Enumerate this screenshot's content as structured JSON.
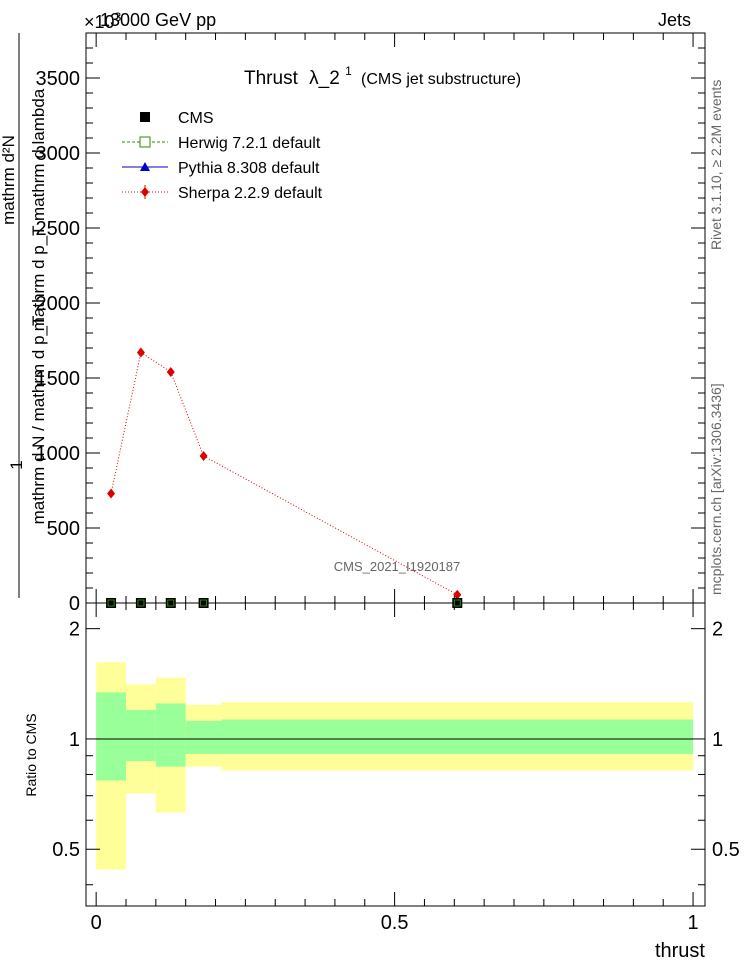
{
  "header": {
    "left": "13000 GeV pp",
    "right": "Jets",
    "exponent_label": "×10",
    "exponent_power": "3"
  },
  "side_text": {
    "rivet": "Rivet 3.1.10, ≥ 2.2M events",
    "mcplots": "mcplots.cern.ch [arXiv:1306.3436]"
  },
  "main_title": {
    "prefix": "Thrust",
    "lambda": "λ_2",
    "superscript": "1",
    "suffix": "(CMS jet substructure)"
  },
  "analysis_id": "CMS_2021_I1920187",
  "y_title": {
    "numerator": "mathrm d²N",
    "numerator_2": "mathrm d p_T mathrm d lambda",
    "denominator": "mathrm d N / mathrm d p_T",
    "one": "1"
  },
  "ratio_ylabel": "Ratio to CMS",
  "xlabel": "thrust",
  "legend": [
    {
      "name": "CMS",
      "color": "#000000",
      "marker": "square-filled",
      "line": "none"
    },
    {
      "name": "Herwig 7.2.1 default",
      "color": "#2e8b00",
      "marker": "square-open",
      "line": "dashed"
    },
    {
      "name": "Pythia 8.308 default",
      "color": "#0000cc",
      "marker": "triangle",
      "line": "solid"
    },
    {
      "name": "Sherpa 2.2.9 default",
      "color": "#dd0000",
      "marker": "diamond",
      "line": "dotted"
    }
  ],
  "chart_data": [
    {
      "type": "line",
      "panel": "main",
      "x_ticks": [
        "0",
        "0.5",
        "1"
      ],
      "y_ticks": [
        "0",
        "500",
        "1000",
        "1500",
        "2000",
        "2500",
        "3000",
        "3500"
      ],
      "xlim": [
        -0.017,
        1.02
      ],
      "ylim": [
        0,
        3800
      ],
      "series": [
        {
          "name": "CMS",
          "x": [
            0.025,
            0.075,
            0.125,
            0.18,
            0.605
          ],
          "y": [
            0,
            0,
            0,
            0,
            0
          ]
        },
        {
          "name": "Sherpa 2.2.9 default",
          "x": [
            0.025,
            0.075,
            0.125,
            0.18,
            0.605
          ],
          "y": [
            730,
            1670,
            1540,
            980,
            55
          ],
          "yerr": [
            20,
            28,
            25,
            16,
            8
          ]
        }
      ]
    },
    {
      "type": "area",
      "panel": "ratio",
      "y_ticks": [
        "0.5",
        "1",
        "2"
      ],
      "ylim": [
        0.35,
        2.35
      ],
      "bins": [
        {
          "x0": 0.0,
          "x1": 0.05,
          "green": [
            0.77,
            1.34
          ],
          "yellow": [
            0.44,
            1.62
          ]
        },
        {
          "x0": 0.05,
          "x1": 0.1,
          "green": [
            0.87,
            1.2
          ],
          "yellow": [
            0.71,
            1.41
          ]
        },
        {
          "x0": 0.1,
          "x1": 0.15,
          "green": [
            0.84,
            1.25
          ],
          "yellow": [
            0.63,
            1.47
          ]
        },
        {
          "x0": 0.15,
          "x1": 0.21,
          "green": [
            0.91,
            1.12
          ],
          "yellow": [
            0.84,
            1.24
          ]
        },
        {
          "x0": 0.21,
          "x1": 1.0,
          "green": [
            0.91,
            1.13
          ],
          "yellow": [
            0.82,
            1.26
          ]
        }
      ],
      "reference": 1
    }
  ]
}
